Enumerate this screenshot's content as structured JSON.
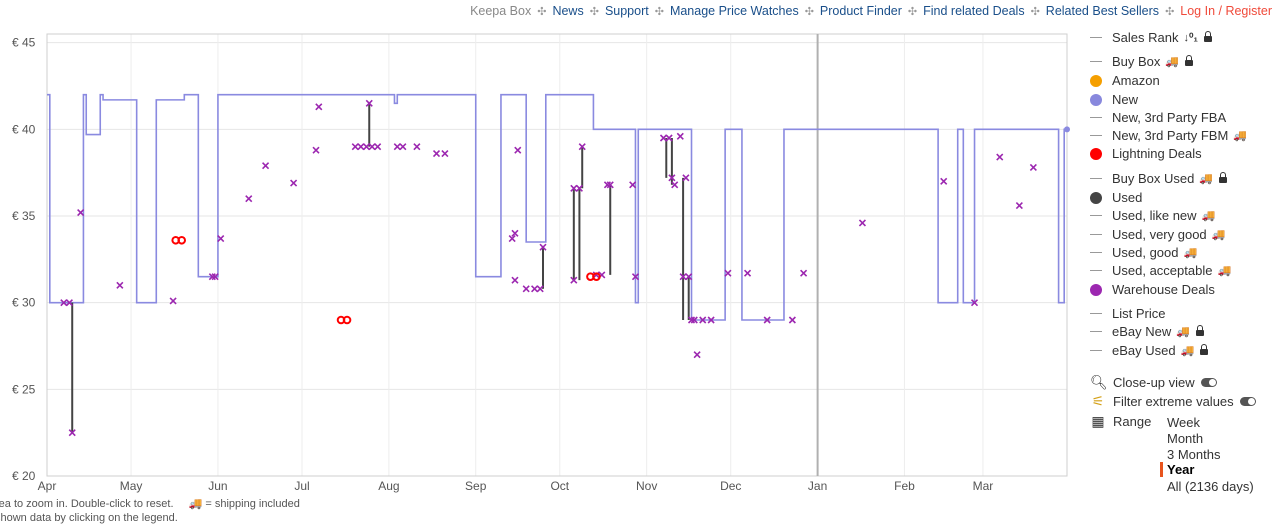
{
  "nav": {
    "items": [
      {
        "label": "Keepa Box",
        "color": "#888888"
      },
      {
        "label": "News",
        "color": "#1a4f8a"
      },
      {
        "label": "Support",
        "color": "#1a4f8a"
      },
      {
        "label": "Manage Price Watches",
        "color": "#1a4f8a"
      },
      {
        "label": "Product Finder",
        "color": "#1a4f8a"
      },
      {
        "label": "Find related Deals",
        "color": "#1a4f8a"
      },
      {
        "label": "Related Best Sellers",
        "color": "#1a4f8a"
      },
      {
        "label": "Log In / Register",
        "color": "#f04a3a"
      }
    ]
  },
  "hints": {
    "line1": "rea to zoom in. Double-click to reset.",
    "truck_text": "= shipping included",
    "line2": "shown data by clicking on the legend."
  },
  "legend": {
    "items": [
      {
        "label": "Sales Rank",
        "marker": "line",
        "extra": "sort-icon",
        "lock": true
      },
      {
        "label": "Buy Box",
        "marker": "line",
        "truck": true,
        "lock": true
      },
      {
        "label": "Amazon",
        "marker": "dot",
        "color": "#f59f00"
      },
      {
        "label": "New",
        "marker": "dot",
        "color": "#8888dd"
      },
      {
        "label": "New, 3rd Party FBA",
        "marker": "line"
      },
      {
        "label": "New, 3rd Party FBM",
        "marker": "line",
        "truck": true
      },
      {
        "label": "Lightning Deals",
        "marker": "dot",
        "color": "#ff0000"
      },
      {
        "label": "Buy Box Used",
        "marker": "line",
        "truck": true,
        "lock": true
      },
      {
        "label": "Used",
        "marker": "dot",
        "color": "#444444"
      },
      {
        "label": "Used, like new",
        "marker": "line",
        "truck": true
      },
      {
        "label": "Used, very good",
        "marker": "line",
        "truck": true
      },
      {
        "label": "Used, good",
        "marker": "line",
        "truck": true
      },
      {
        "label": "Used, acceptable",
        "marker": "line",
        "truck": true
      },
      {
        "label": "Warehouse Deals",
        "marker": "dot",
        "color": "#9c27b0"
      },
      {
        "label": "List Price",
        "marker": "line"
      },
      {
        "label": "eBay New",
        "marker": "line",
        "truck": true,
        "lock": true
      },
      {
        "label": "eBay Used",
        "marker": "line",
        "truck": true,
        "lock": true
      }
    ],
    "tools": [
      {
        "label": "Close-up view",
        "icon": "magnifier-icon"
      },
      {
        "label": "Filter extreme values",
        "icon": "filter-icon"
      }
    ],
    "range_label": "Range",
    "range_options": [
      "Week",
      "Month",
      "3 Months",
      "Year",
      "All (2136 days)"
    ],
    "range_selected": "Year"
  },
  "chart_data": {
    "type": "line",
    "xlim": [
      "2024-04-01",
      "2025-03-31"
    ],
    "ylim": [
      20,
      45.5
    ],
    "y_ticks": [
      20,
      25,
      30,
      35,
      40,
      45
    ],
    "y_tick_labels": [
      "€ 20",
      "€ 25",
      "€ 30",
      "€ 35",
      "€ 40",
      "€ 45"
    ],
    "x_ticks": [
      {
        "label": "Apr",
        "date": "2024-04-01"
      },
      {
        "label": "May",
        "date": "2024-05-01"
      },
      {
        "label": "Jun",
        "date": "2024-06-01"
      },
      {
        "label": "Jul",
        "date": "2024-07-01"
      },
      {
        "label": "Aug",
        "date": "2024-08-01"
      },
      {
        "label": "Sep",
        "date": "2024-09-01"
      },
      {
        "label": "Oct",
        "date": "2024-10-01"
      },
      {
        "label": "Nov",
        "date": "2024-11-01"
      },
      {
        "label": "Dec",
        "date": "2024-12-01"
      },
      {
        "label": "Jan",
        "date": "2025-01-01"
      },
      {
        "label": "Feb",
        "date": "2025-02-01"
      },
      {
        "label": "Mar",
        "date": "2025-03-01"
      }
    ],
    "grid": true,
    "today_marker": "2025-01-01",
    "new_price": {
      "name": "New",
      "color": "#8a8ae0",
      "steps": [
        [
          "2024-04-01",
          42
        ],
        [
          "2024-04-02",
          30
        ],
        [
          "2024-04-14",
          42
        ],
        [
          "2024-04-15",
          39.7
        ],
        [
          "2024-04-20",
          42
        ],
        [
          "2024-04-21",
          41.7
        ],
        [
          "2024-05-03",
          30
        ],
        [
          "2024-05-10",
          41.7
        ],
        [
          "2024-05-20",
          42
        ],
        [
          "2024-05-25",
          31.5
        ],
        [
          "2024-06-01",
          42
        ],
        [
          "2024-08-03",
          41.5
        ],
        [
          "2024-08-04",
          42
        ],
        [
          "2024-09-01",
          31.5
        ],
        [
          "2024-09-10",
          42
        ],
        [
          "2024-09-19",
          33.5
        ],
        [
          "2024-09-26",
          42
        ],
        [
          "2024-10-13",
          40
        ],
        [
          "2024-10-28",
          30
        ],
        [
          "2024-10-29",
          40
        ],
        [
          "2024-11-17",
          29
        ],
        [
          "2024-11-29",
          40
        ],
        [
          "2024-12-05",
          29
        ],
        [
          "2024-12-20",
          40
        ],
        [
          "2025-02-13",
          30
        ],
        [
          "2025-02-20",
          40
        ],
        [
          "2025-02-22",
          30
        ],
        [
          "2025-02-26",
          40
        ],
        [
          "2025-03-28",
          30
        ],
        [
          "2025-03-30",
          40
        ]
      ]
    },
    "warehouse_points": [
      [
        "2024-04-07",
        30
      ],
      [
        "2024-04-09",
        30
      ],
      [
        "2024-04-10",
        22.5
      ],
      [
        "2024-04-13",
        35.2
      ],
      [
        "2024-04-27",
        31
      ],
      [
        "2024-05-16",
        30.1
      ],
      [
        "2024-05-30",
        31.5
      ],
      [
        "2024-05-31",
        31.5
      ],
      [
        "2024-06-02",
        33.7
      ],
      [
        "2024-06-12",
        36
      ],
      [
        "2024-06-18",
        37.9
      ],
      [
        "2024-06-28",
        36.9
      ],
      [
        "2024-07-06",
        38.8
      ],
      [
        "2024-07-07",
        41.3
      ],
      [
        "2024-07-20",
        39
      ],
      [
        "2024-07-22",
        39
      ],
      [
        "2024-07-24",
        39
      ],
      [
        "2024-07-25",
        41.5
      ],
      [
        "2024-07-26",
        39
      ],
      [
        "2024-07-28",
        39
      ],
      [
        "2024-08-04",
        39
      ],
      [
        "2024-08-06",
        39
      ],
      [
        "2024-08-11",
        39
      ],
      [
        "2024-08-18",
        38.6
      ],
      [
        "2024-08-21",
        38.6
      ],
      [
        "2024-09-14",
        33.7
      ],
      [
        "2024-09-15",
        31.3
      ],
      [
        "2024-09-15",
        34
      ],
      [
        "2024-09-16",
        38.8
      ],
      [
        "2024-09-19",
        30.8
      ],
      [
        "2024-09-22",
        30.8
      ],
      [
        "2024-09-24",
        30.8
      ],
      [
        "2024-09-25",
        33.2
      ],
      [
        "2024-10-06",
        36.6
      ],
      [
        "2024-10-06",
        31.3
      ],
      [
        "2024-10-08",
        36.6
      ],
      [
        "2024-10-09",
        39
      ],
      [
        "2024-10-14",
        31.6
      ],
      [
        "2024-10-16",
        31.6
      ],
      [
        "2024-10-18",
        36.8
      ],
      [
        "2024-10-19",
        36.8
      ],
      [
        "2024-10-27",
        36.8
      ],
      [
        "2024-10-28",
        31.5
      ],
      [
        "2024-11-07",
        39.5
      ],
      [
        "2024-11-09",
        39.5
      ],
      [
        "2024-11-10",
        37.2
      ],
      [
        "2024-11-11",
        36.8
      ],
      [
        "2024-11-13",
        39.6
      ],
      [
        "2024-11-14",
        31.5
      ],
      [
        "2024-11-15",
        37.2
      ],
      [
        "2024-11-16",
        31.5
      ],
      [
        "2024-11-17",
        29
      ],
      [
        "2024-11-18",
        29
      ],
      [
        "2024-11-19",
        27
      ],
      [
        "2024-11-21",
        29
      ],
      [
        "2024-11-24",
        29
      ],
      [
        "2024-11-30",
        31.7
      ],
      [
        "2024-12-07",
        31.7
      ],
      [
        "2024-12-14",
        29
      ],
      [
        "2024-12-23",
        29
      ],
      [
        "2024-12-27",
        31.7
      ],
      [
        "2025-01-17",
        34.6
      ],
      [
        "2025-02-15",
        37
      ],
      [
        "2025-02-26",
        30
      ],
      [
        "2025-03-07",
        38.4
      ],
      [
        "2025-03-14",
        35.6
      ],
      [
        "2025-03-19",
        37.8
      ]
    ],
    "warehouse_drops": [
      [
        "2024-04-10",
        30,
        22.5
      ],
      [
        "2024-07-25",
        41.5,
        39
      ],
      [
        "2024-09-25",
        33.2,
        30.8
      ],
      [
        "2024-10-06",
        36.6,
        31.3
      ],
      [
        "2024-10-08",
        36.6,
        31.3
      ],
      [
        "2024-10-09",
        39,
        36.6
      ],
      [
        "2024-10-19",
        36.8,
        31.6
      ],
      [
        "2024-11-08",
        39.5,
        37.2
      ],
      [
        "2024-11-10",
        39.5,
        36.8
      ],
      [
        "2024-11-14",
        37.2,
        29
      ],
      [
        "2024-11-16",
        31.5,
        29
      ]
    ],
    "lightning_deals": [
      [
        "2024-05-18",
        33.6
      ],
      [
        "2024-07-16",
        29
      ],
      [
        "2024-10-13",
        31.5
      ]
    ]
  }
}
